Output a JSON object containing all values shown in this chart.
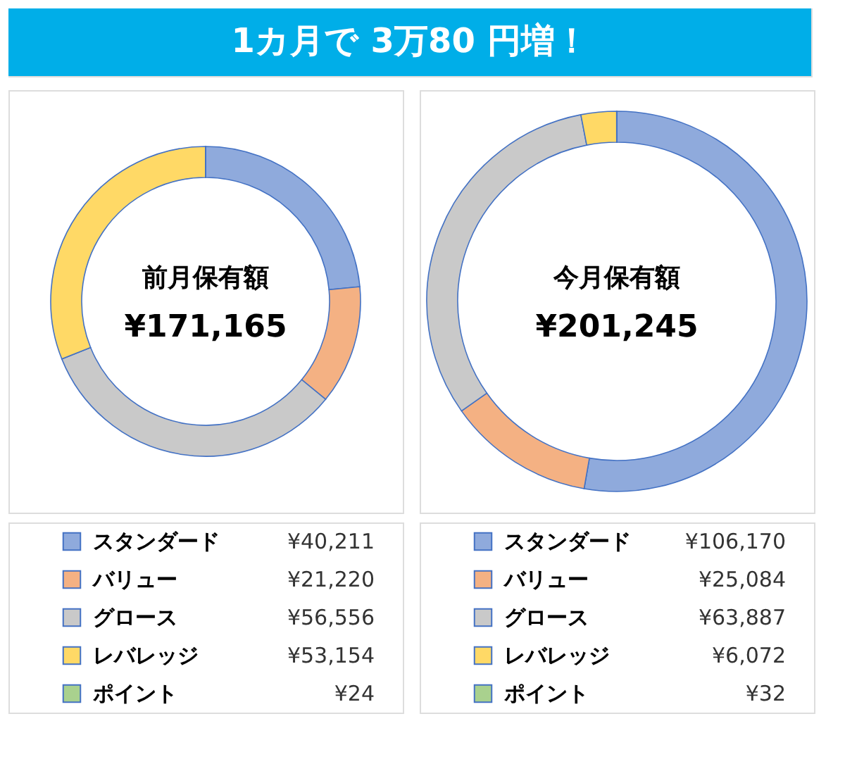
{
  "chart_data": [
    {
      "type": "donut",
      "title": "1カ月で 3万80 円増！",
      "categories": [
        "スタンダード",
        "バリュー",
        "グロース",
        "レバレッジ",
        "ポイント"
      ],
      "values": [
        40211,
        21220,
        56556,
        53154,
        24
      ],
      "value_labels": [
        "¥40,211",
        "¥21,220",
        "¥56,556",
        "¥53,154",
        "¥24"
      ],
      "colors": [
        "#8faadc",
        "#f4b183",
        "#c9c9c9",
        "#ffd966",
        "#a9d18e"
      ],
      "annotations": [
        "前月保有額",
        "¥171,165"
      ],
      "legend": "bottom"
    },
    {
      "type": "donut",
      "categories": [
        "スタンダード",
        "バリュー",
        "グロース",
        "レバレッジ",
        "ポイント"
      ],
      "values": [
        106170,
        25084,
        63887,
        6072,
        32
      ],
      "value_labels": [
        "¥106,170",
        "¥25,084",
        "¥63,887",
        "¥6,072",
        "¥32"
      ],
      "colors": [
        "#8faadc",
        "#f4b183",
        "#c9c9c9",
        "#ffd966",
        "#a9d18e"
      ],
      "annotations": [
        "今月保有額",
        "¥201,245"
      ],
      "legend": "bottom"
    }
  ]
}
